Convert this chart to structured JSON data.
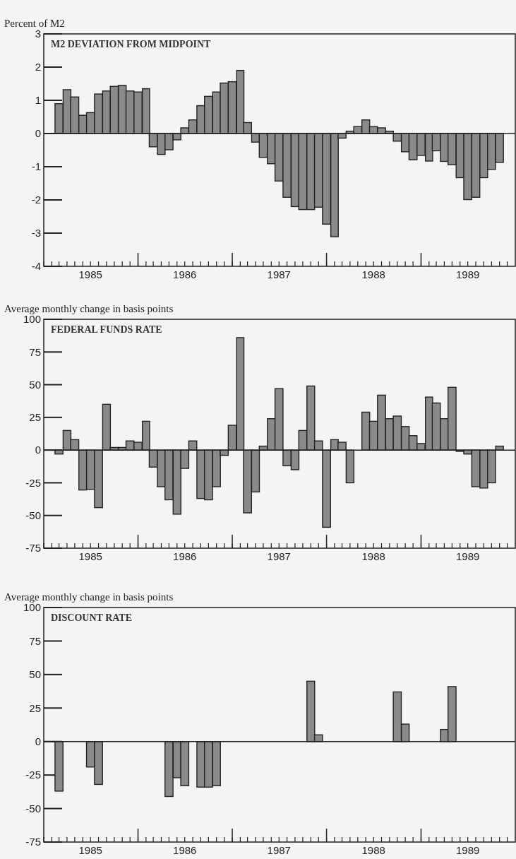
{
  "chart_data": [
    {
      "type": "bar",
      "title": "M2 DEVIATION FROM MIDPOINT",
      "ylabel": "Percent of M2",
      "color": "#8a8a8a",
      "x": [
        "1985-03",
        "1985-04",
        "1985-05",
        "1985-06",
        "1985-07",
        "1985-08",
        "1985-09",
        "1985-10",
        "1985-11",
        "1985-12",
        "1986-01",
        "1986-02",
        "1986-03",
        "1986-04",
        "1986-05",
        "1986-06",
        "1986-07",
        "1986-08",
        "1986-09",
        "1986-10",
        "1986-11",
        "1986-12",
        "1987-01",
        "1987-02",
        "1987-03",
        "1987-04",
        "1987-05",
        "1987-06",
        "1987-07",
        "1987-08",
        "1987-09",
        "1987-10",
        "1987-11",
        "1987-12",
        "1988-01",
        "1988-02",
        "1988-03",
        "1988-04",
        "1988-05",
        "1988-06",
        "1988-07",
        "1988-08",
        "1988-09",
        "1988-10",
        "1988-11",
        "1988-12",
        "1989-01",
        "1989-02",
        "1989-03",
        "1989-04",
        "1989-05",
        "1989-06",
        "1989-07",
        "1989-08",
        "1989-09",
        "1989-10",
        "1989-11"
      ],
      "values": [
        0.9,
        1.32,
        1.1,
        0.55,
        0.63,
        1.19,
        1.28,
        1.42,
        1.45,
        1.28,
        1.25,
        1.35,
        -0.4,
        -0.63,
        -0.49,
        -0.19,
        0.17,
        0.41,
        0.84,
        1.12,
        1.25,
        1.52,
        1.56,
        1.9,
        0.33,
        -0.26,
        -0.72,
        -0.91,
        -1.43,
        -1.92,
        -2.2,
        -2.29,
        -2.29,
        -2.22,
        -2.73,
        -3.11,
        -0.14,
        0.07,
        0.21,
        0.41,
        0.21,
        0.17,
        0.07,
        -0.23,
        -0.55,
        -0.79,
        -0.66,
        -0.83,
        -0.52,
        -0.84,
        -0.94,
        -1.33,
        -1.99,
        -1.92,
        -1.33,
        -1.08,
        -0.87
      ],
      "xlim": [
        "1985-01",
        "1990-01"
      ],
      "xticks": [
        {
          "value": "1985-07",
          "label": "1985"
        },
        {
          "value": "1986-01",
          "label": null
        },
        {
          "value": "1986-07",
          "label": "1986"
        },
        {
          "value": "1987-01",
          "label": null
        },
        {
          "value": "1987-07",
          "label": "1987"
        },
        {
          "value": "1988-01",
          "label": null
        },
        {
          "value": "1988-07",
          "label": "1988"
        },
        {
          "value": "1989-01",
          "label": null
        },
        {
          "value": "1989-07",
          "label": "1989"
        }
      ],
      "ylim": [
        -4,
        3
      ],
      "yticks": [
        -4,
        -3,
        -2,
        -1,
        0,
        1,
        2,
        3
      ]
    },
    {
      "type": "bar",
      "title": "FEDERAL FUNDS RATE",
      "ylabel": "Average monthly change in basis points",
      "color": "#8a8a8a",
      "x": [
        "1985-03",
        "1985-04",
        "1985-05",
        "1985-06",
        "1985-07",
        "1985-08",
        "1985-09",
        "1985-10",
        "1985-11",
        "1985-12",
        "1986-01",
        "1986-02",
        "1986-03",
        "1986-04",
        "1986-05",
        "1986-06",
        "1986-07",
        "1986-08",
        "1986-09",
        "1986-10",
        "1986-11",
        "1986-12",
        "1987-01",
        "1987-02",
        "1987-03",
        "1987-04",
        "1987-05",
        "1987-06",
        "1987-07",
        "1987-08",
        "1987-09",
        "1987-10",
        "1987-11",
        "1987-12",
        "1988-01",
        "1988-02",
        "1988-03",
        "1988-04",
        "1988-05",
        "1988-06",
        "1988-07",
        "1988-08",
        "1988-09",
        "1988-10",
        "1988-11",
        "1988-12",
        "1989-01",
        "1989-02",
        "1989-03",
        "1989-04",
        "1989-05",
        "1989-06",
        "1989-07",
        "1989-08",
        "1989-09",
        "1989-10",
        "1989-11"
      ],
      "values": [
        -3,
        15,
        8,
        -30.5,
        -30,
        -44,
        35,
        2,
        2,
        7,
        6,
        22,
        -13,
        -28,
        -38,
        -49,
        -14,
        7,
        -37,
        -38,
        -28,
        -4,
        19,
        86,
        -48,
        -32,
        3,
        24,
        47,
        -12,
        -15,
        15,
        49,
        7,
        -59,
        8,
        6,
        -25,
        0,
        29,
        22,
        42,
        24,
        26,
        18,
        11,
        5,
        40.5,
        36,
        24,
        48,
        -1,
        -3,
        -28,
        -29,
        -25,
        3
      ],
      "xlim": [
        "1985-01",
        "1990-01"
      ],
      "xticks": [
        {
          "value": "1985-07",
          "label": "1985"
        },
        {
          "value": "1986-01",
          "label": null
        },
        {
          "value": "1986-07",
          "label": "1986"
        },
        {
          "value": "1987-01",
          "label": null
        },
        {
          "value": "1987-07",
          "label": "1987"
        },
        {
          "value": "1988-01",
          "label": null
        },
        {
          "value": "1988-07",
          "label": "1988"
        },
        {
          "value": "1989-01",
          "label": null
        },
        {
          "value": "1989-07",
          "label": "1989"
        }
      ],
      "ylim": [
        -75,
        100
      ],
      "yticks": [
        -75,
        -50,
        -25,
        0,
        25,
        50,
        75,
        100
      ]
    },
    {
      "type": "bar",
      "title": "DISCOUNT RATE",
      "ylabel": "Average monthly change in basis points",
      "color": "#8a8a8a",
      "x": [
        "1985-03",
        "1985-04",
        "1985-05",
        "1985-06",
        "1985-07",
        "1985-08",
        "1985-09",
        "1985-10",
        "1985-11",
        "1985-12",
        "1986-01",
        "1986-02",
        "1986-03",
        "1986-04",
        "1986-05",
        "1986-06",
        "1986-07",
        "1986-08",
        "1986-09",
        "1986-10",
        "1986-11",
        "1986-12",
        "1987-01",
        "1987-02",
        "1987-03",
        "1987-04",
        "1987-05",
        "1987-06",
        "1987-07",
        "1987-08",
        "1987-09",
        "1987-10",
        "1987-11",
        "1987-12",
        "1988-01",
        "1988-02",
        "1988-03",
        "1988-04",
        "1988-05",
        "1988-06",
        "1988-07",
        "1988-08",
        "1988-09",
        "1988-10",
        "1988-11",
        "1988-12",
        "1989-01",
        "1989-02",
        "1989-03",
        "1989-04",
        "1989-05"
      ],
      "values": [
        -37,
        null,
        null,
        null,
        -19,
        -32,
        null,
        null,
        null,
        null,
        null,
        null,
        null,
        null,
        -41,
        -27,
        -33,
        null,
        -34,
        -34,
        -33,
        null,
        null,
        null,
        null,
        null,
        null,
        null,
        null,
        null,
        null,
        null,
        45,
        5,
        null,
        null,
        null,
        null,
        null,
        null,
        null,
        null,
        null,
        37,
        13,
        null,
        null,
        null,
        null,
        9,
        41
      ],
      "xlim": [
        "1985-01",
        "1990-01"
      ],
      "xticks": [
        {
          "value": "1985-07",
          "label": "1985"
        },
        {
          "value": "1986-01",
          "label": null
        },
        {
          "value": "1986-07",
          "label": "1986"
        },
        {
          "value": "1987-01",
          "label": null
        },
        {
          "value": "1987-07",
          "label": "1987"
        },
        {
          "value": "1988-01",
          "label": null
        },
        {
          "value": "1988-07",
          "label": "1988"
        },
        {
          "value": "1989-01",
          "label": null
        },
        {
          "value": "1989-07",
          "label": "1989"
        }
      ],
      "ylim": [
        -75,
        100
      ],
      "yticks": [
        -75,
        -50,
        -25,
        0,
        25,
        50,
        75,
        100
      ]
    }
  ]
}
